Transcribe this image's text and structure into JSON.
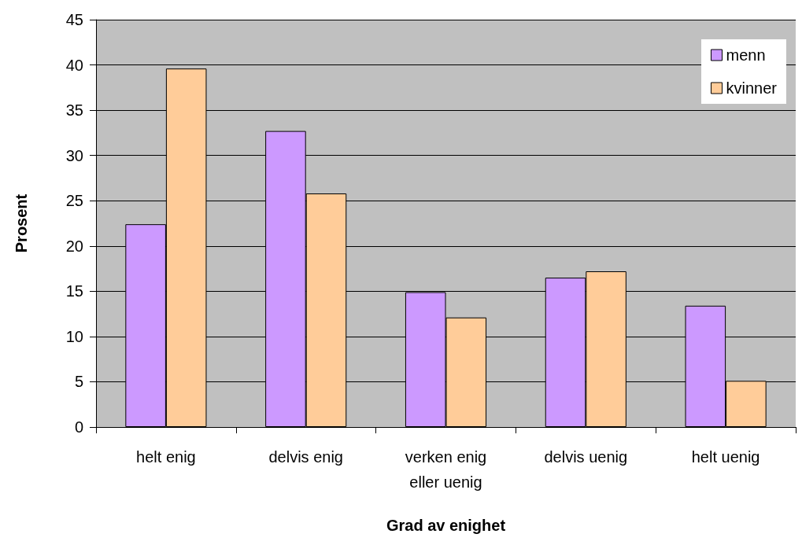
{
  "chart_data": {
    "type": "bar",
    "xlabel": "Grad av enighet",
    "ylabel": "Prosent",
    "categories": [
      "helt enig",
      "delvis enig",
      "verken enig\neller uenig",
      "delvis uenig",
      "helt uenig"
    ],
    "series": [
      {
        "name": "menn",
        "color": "#cc99ff",
        "values": [
          22.4,
          32.7,
          14.9,
          16.5,
          13.4
        ]
      },
      {
        "name": "kvinner",
        "color": "#ffcc99",
        "values": [
          39.6,
          25.8,
          12.1,
          17.2,
          5.1
        ]
      }
    ],
    "ylim": [
      0,
      45
    ],
    "yticks": [
      0,
      5,
      10,
      15,
      20,
      25,
      30,
      35,
      40,
      45
    ],
    "grid": "y",
    "legend": "top right"
  }
}
